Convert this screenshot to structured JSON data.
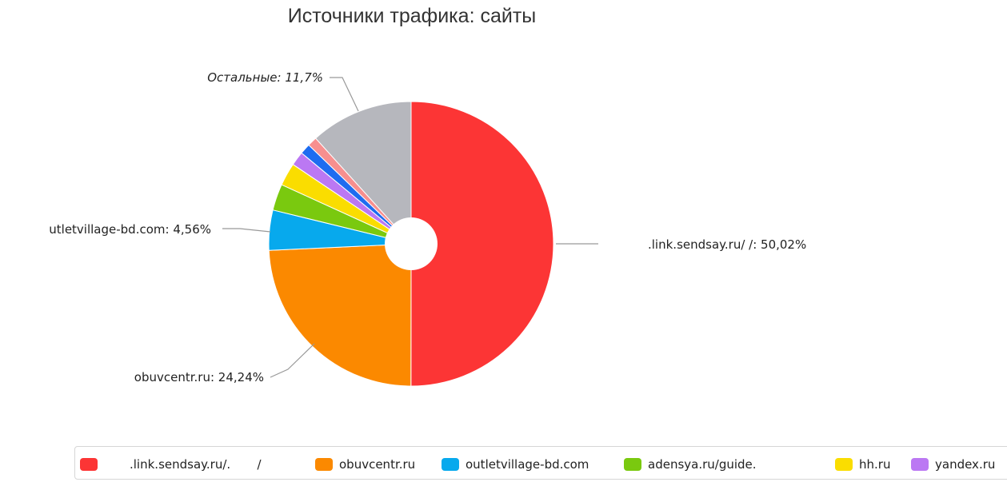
{
  "chart_data": {
    "type": "pie",
    "title": "Источники трафика: сайты",
    "slices": [
      {
        "name": ".link.sendsay.ru/.       /",
        "value": 50.02,
        "color": "#fc3535",
        "label": ".link.sendsay.ru/          /: 50,02%"
      },
      {
        "name": "obuvcentr.ru",
        "value": 24.24,
        "color": "#fb8900",
        "label": "obuvcentr.ru: 24,24%"
      },
      {
        "name": "outletvillage-bd.com",
        "value": 4.56,
        "color": "#07a9ed",
        "label": "utletvillage-bd.com: 4,56%"
      },
      {
        "name": "adensya.ru/guide.",
        "value": 3.0,
        "color": "#7ac90f",
        "label": ""
      },
      {
        "name": "hh.ru",
        "value": 2.6,
        "color": "#fadd00",
        "label": ""
      },
      {
        "name": "yandex.ru",
        "value": 1.6,
        "color": "#bb78f3",
        "label": ""
      },
      {
        "name": "",
        "value": 1.2,
        "color": "#1e6cf0",
        "label": ""
      },
      {
        "name": "",
        "value": 1.08,
        "color": "#f78f8f",
        "label": ""
      },
      {
        "name": "Остальные",
        "value": 11.7,
        "color": "#b6b7bd",
        "label": "Остальные: 11,7%"
      }
    ],
    "legend_position": "bottom"
  }
}
